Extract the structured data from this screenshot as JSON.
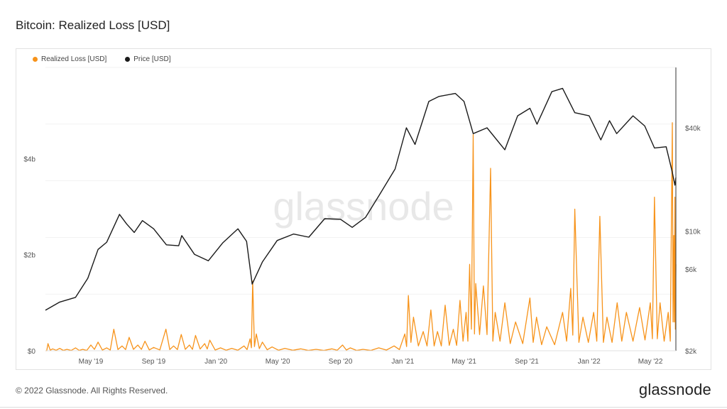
{
  "title": "Bitcoin: Realized Loss [USD]",
  "footer": {
    "copyright": "© 2022 Glassnode. All Rights Reserved.",
    "brand": "glassnode"
  },
  "watermark": "glassnode",
  "colors": {
    "loss": "#f7931a",
    "price": "#1a1a1a",
    "grid": "#f1f1f1"
  },
  "chart_data": {
    "type": "line",
    "series": [
      {
        "name": "Realized Loss [USD]",
        "axis": "left",
        "points": [
          [
            "2019-02-01",
            0.0
          ],
          [
            "2019-02-06",
            0.15
          ],
          [
            "2019-02-15",
            0.04
          ],
          [
            "2019-03-01",
            0.05
          ],
          [
            "2019-03-15",
            0.03
          ],
          [
            "2019-04-01",
            0.06
          ],
          [
            "2019-04-15",
            0.03
          ],
          [
            "2019-05-01",
            0.12
          ],
          [
            "2019-05-15",
            0.18
          ],
          [
            "2019-06-01",
            0.06
          ],
          [
            "2019-06-15",
            0.45
          ],
          [
            "2019-07-01",
            0.1
          ],
          [
            "2019-07-15",
            0.28
          ],
          [
            "2019-08-01",
            0.12
          ],
          [
            "2019-08-15",
            0.2
          ],
          [
            "2019-09-01",
            0.07
          ],
          [
            "2019-09-25",
            0.45
          ],
          [
            "2019-10-10",
            0.1
          ],
          [
            "2019-10-25",
            0.34
          ],
          [
            "2019-11-10",
            0.12
          ],
          [
            "2019-11-22",
            0.32
          ],
          [
            "2019-12-10",
            0.15
          ],
          [
            "2019-12-20",
            0.22
          ],
          [
            "2020-01-10",
            0.06
          ],
          [
            "2020-02-01",
            0.05
          ],
          [
            "2020-02-25",
            0.1
          ],
          [
            "2020-03-08",
            0.25
          ],
          [
            "2020-03-13",
            1.45
          ],
          [
            "2020-03-20",
            0.35
          ],
          [
            "2020-04-01",
            0.18
          ],
          [
            "2020-04-20",
            0.08
          ],
          [
            "2020-05-15",
            0.05
          ],
          [
            "2020-06-15",
            0.04
          ],
          [
            "2020-07-15",
            0.03
          ],
          [
            "2020-08-15",
            0.04
          ],
          [
            "2020-09-05",
            0.12
          ],
          [
            "2020-09-20",
            0.06
          ],
          [
            "2020-10-15",
            0.03
          ],
          [
            "2020-11-15",
            0.06
          ],
          [
            "2020-12-15",
            0.1
          ],
          [
            "2021-01-05",
            0.35
          ],
          [
            "2021-01-12",
            1.15
          ],
          [
            "2021-01-22",
            0.7
          ],
          [
            "2021-02-10",
            0.4
          ],
          [
            "2021-02-25",
            0.85
          ],
          [
            "2021-03-10",
            0.4
          ],
          [
            "2021-03-25",
            0.95
          ],
          [
            "2021-04-10",
            0.45
          ],
          [
            "2021-04-23",
            1.05
          ],
          [
            "2021-05-05",
            0.8
          ],
          [
            "2021-05-12",
            1.8
          ],
          [
            "2021-05-19",
            4.5
          ],
          [
            "2021-05-24",
            1.4
          ],
          [
            "2021-06-08",
            1.35
          ],
          [
            "2021-06-22",
            3.8
          ],
          [
            "2021-07-01",
            0.8
          ],
          [
            "2021-07-20",
            1.0
          ],
          [
            "2021-08-10",
            0.6
          ],
          [
            "2021-09-07",
            1.1
          ],
          [
            "2021-09-20",
            0.7
          ],
          [
            "2021-10-10",
            0.5
          ],
          [
            "2021-11-10",
            0.8
          ],
          [
            "2021-11-26",
            1.3
          ],
          [
            "2021-12-04",
            2.95
          ],
          [
            "2021-12-20",
            0.7
          ],
          [
            "2022-01-10",
            0.8
          ],
          [
            "2022-01-22",
            2.8
          ],
          [
            "2022-02-05",
            0.7
          ],
          [
            "2022-02-25",
            1.0
          ],
          [
            "2022-03-15",
            0.8
          ],
          [
            "2022-04-10",
            0.9
          ],
          [
            "2022-05-01",
            1.0
          ],
          [
            "2022-05-09",
            3.2
          ],
          [
            "2022-05-20",
            1.0
          ],
          [
            "2022-06-05",
            0.8
          ],
          [
            "2022-06-13",
            4.75
          ],
          [
            "2022-06-16",
            2.4
          ],
          [
            "2022-06-18",
            3.2
          ],
          [
            "2022-06-20",
            1.8
          ]
        ]
      },
      {
        "name": "Price [USD]",
        "axis": "right",
        "scale": "log",
        "points": [
          [
            "2019-02-01",
            3450
          ],
          [
            "2019-03-01",
            3850
          ],
          [
            "2019-04-01",
            4100
          ],
          [
            "2019-04-25",
            5300
          ],
          [
            "2019-05-15",
            7800
          ],
          [
            "2019-06-01",
            8600
          ],
          [
            "2019-06-26",
            12500
          ],
          [
            "2019-07-10",
            11000
          ],
          [
            "2019-07-25",
            9800
          ],
          [
            "2019-08-10",
            11500
          ],
          [
            "2019-09-01",
            10300
          ],
          [
            "2019-09-26",
            8300
          ],
          [
            "2019-10-20",
            8200
          ],
          [
            "2019-10-26",
            9400
          ],
          [
            "2019-11-20",
            7300
          ],
          [
            "2019-12-17",
            6700
          ],
          [
            "2020-01-14",
            8500
          ],
          [
            "2020-02-13",
            10300
          ],
          [
            "2020-03-01",
            8700
          ],
          [
            "2020-03-12",
            4900
          ],
          [
            "2020-04-01",
            6600
          ],
          [
            "2020-04-30",
            8800
          ],
          [
            "2020-06-01",
            9600
          ],
          [
            "2020-07-01",
            9200
          ],
          [
            "2020-08-01",
            11800
          ],
          [
            "2020-09-01",
            11700
          ],
          [
            "2020-09-24",
            10500
          ],
          [
            "2020-10-20",
            12000
          ],
          [
            "2020-11-15",
            16000
          ],
          [
            "2020-12-17",
            23000
          ],
          [
            "2021-01-08",
            40000
          ],
          [
            "2021-01-25",
            32000
          ],
          [
            "2021-02-21",
            57000
          ],
          [
            "2021-03-13",
            61000
          ],
          [
            "2021-04-14",
            63500
          ],
          [
            "2021-05-01",
            57000
          ],
          [
            "2021-05-19",
            37000
          ],
          [
            "2021-06-15",
            40000
          ],
          [
            "2021-07-20",
            29800
          ],
          [
            "2021-08-14",
            47000
          ],
          [
            "2021-09-07",
            52000
          ],
          [
            "2021-09-21",
            42000
          ],
          [
            "2021-10-20",
            65000
          ],
          [
            "2021-11-10",
            68000
          ],
          [
            "2021-12-04",
            49000
          ],
          [
            "2022-01-01",
            47000
          ],
          [
            "2022-01-24",
            34000
          ],
          [
            "2022-02-10",
            44000
          ],
          [
            "2022-02-24",
            37000
          ],
          [
            "2022-03-28",
            47000
          ],
          [
            "2022-04-20",
            41000
          ],
          [
            "2022-05-09",
            30500
          ],
          [
            "2022-06-01",
            31000
          ],
          [
            "2022-06-13",
            22000
          ],
          [
            "2022-06-18",
            18500
          ],
          [
            "2022-06-20",
            20500
          ]
        ]
      }
    ],
    "x_range": [
      "2019-02-01",
      "2022-06-20"
    ],
    "x_ticks": [
      "May '19",
      "Sep '19",
      "Jan '20",
      "May '20",
      "Sep '20",
      "Jan '21",
      "May '21",
      "Sep '21",
      "Jan '22",
      "May '22"
    ],
    "x_tick_dates": [
      "2019-05-01",
      "2019-09-01",
      "2020-01-01",
      "2020-05-01",
      "2020-09-01",
      "2021-01-01",
      "2021-05-01",
      "2021-09-01",
      "2022-01-01",
      "2022-05-01"
    ],
    "y_left": {
      "ticks": [
        "$0",
        "$2b",
        "$4b"
      ],
      "values": [
        0,
        2,
        4
      ],
      "unit": "billion USD",
      "range": [
        0,
        5.9
      ]
    },
    "y_right": {
      "ticks": [
        "$2k",
        "$6k",
        "$10k",
        "$40k"
      ],
      "values": [
        2000,
        6000,
        10000,
        40000
      ],
      "scale": "log",
      "range": [
        2000,
        90000
      ]
    },
    "legend_position": "top-left",
    "grid": true
  }
}
